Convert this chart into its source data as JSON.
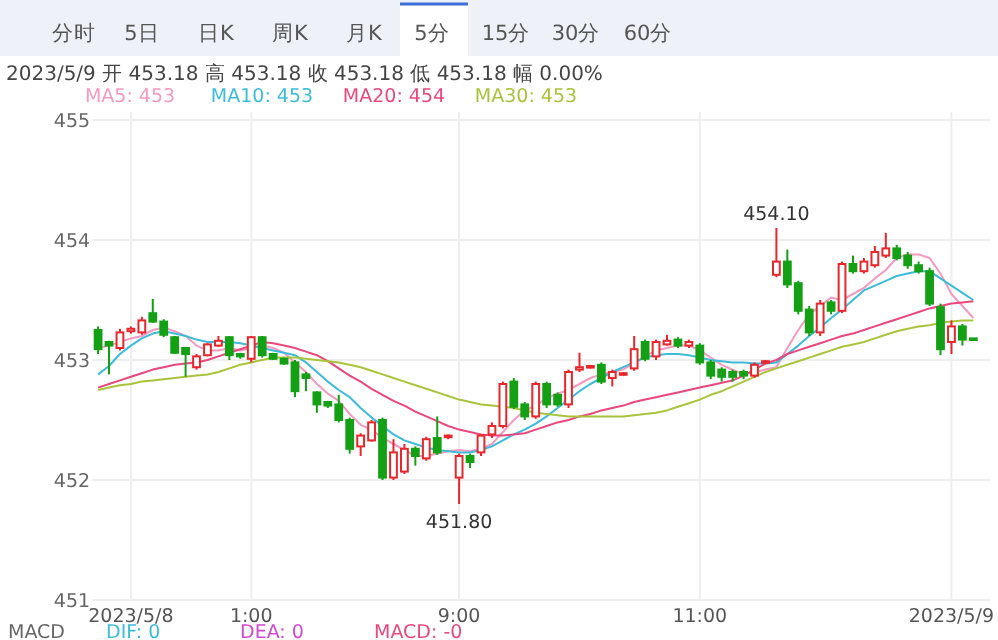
{
  "chart_data": {
    "type": "candlestick",
    "subtitle": "2023/5/9 开 453.18 高 453.18 收 453.18 低 453.18 幅 0.00%",
    "annotations": [
      "分时",
      "5日",
      "日K",
      "周K",
      "月K",
      "5分",
      "15分",
      "30分",
      "60分",
      "MACD",
      "DIF: 0",
      "DEA: 0",
      "MACD: -0",
      {
        "text": "454.10",
        "y": 454.1
      },
      {
        "text": "451.80",
        "y": 451.8
      }
    ],
    "categories": [
      null,
      null,
      null,
      "2023/5/8",
      null,
      null,
      null,
      null,
      null,
      null,
      null,
      null,
      null,
      null,
      "1:00",
      null,
      null,
      null,
      null,
      null,
      null,
      null,
      null,
      null,
      null,
      null,
      null,
      null,
      null,
      null,
      null,
      null,
      null,
      "9:00",
      null,
      null,
      null,
      null,
      null,
      null,
      null,
      null,
      null,
      null,
      null,
      null,
      null,
      null,
      null,
      null,
      null,
      null,
      null,
      null,
      null,
      "11:00",
      null,
      null,
      null,
      null,
      null,
      null,
      null,
      null,
      null,
      null,
      null,
      null,
      null,
      null,
      null,
      null,
      null,
      null,
      null,
      null,
      null,
      null,
      "2023/5/9",
      null,
      null
    ],
    "ohlc": [
      [
        453.25,
        453.28,
        453.05,
        453.09
      ],
      [
        453.15,
        453.16,
        452.88,
        453.12
      ],
      [
        453.1,
        453.26,
        453.08,
        453.23
      ],
      [
        453.24,
        453.28,
        453.22,
        453.26
      ],
      [
        453.23,
        453.36,
        453.21,
        453.33
      ],
      [
        453.39,
        453.51,
        453.31,
        453.32
      ],
      [
        453.32,
        453.34,
        453.19,
        453.21
      ],
      [
        453.19,
        453.2,
        453.05,
        453.06
      ],
      [
        453.1,
        453.11,
        452.86,
        453.05
      ],
      [
        452.94,
        453.05,
        452.92,
        453.03
      ],
      [
        453.04,
        453.14,
        453.03,
        453.13
      ],
      [
        453.12,
        453.2,
        453.11,
        453.16
      ],
      [
        453.19,
        453.2,
        453.0,
        453.04
      ],
      [
        453.05,
        453.06,
        453.01,
        453.03
      ],
      [
        453.01,
        453.2,
        452.98,
        453.19
      ],
      [
        453.19,
        453.2,
        453.02,
        453.04
      ],
      [
        453.05,
        453.06,
        453.0,
        453.01
      ],
      [
        453.01,
        453.02,
        452.96,
        452.97
      ],
      [
        452.98,
        453.0,
        452.69,
        452.74
      ],
      [
        452.88,
        452.9,
        452.74,
        452.85
      ],
      [
        452.73,
        452.74,
        452.56,
        452.63
      ],
      [
        452.65,
        452.66,
        452.6,
        452.62
      ],
      [
        452.63,
        452.71,
        452.48,
        452.5
      ],
      [
        452.5,
        452.52,
        452.22,
        452.26
      ],
      [
        452.28,
        452.39,
        452.2,
        452.37
      ],
      [
        452.33,
        452.5,
        452.32,
        452.48
      ],
      [
        452.5,
        452.52,
        452.0,
        452.02
      ],
      [
        452.02,
        452.34,
        452.0,
        452.23
      ],
      [
        452.07,
        452.3,
        452.05,
        452.26
      ],
      [
        452.26,
        452.28,
        452.12,
        452.2
      ],
      [
        452.18,
        452.36,
        452.16,
        452.34
      ],
      [
        452.35,
        452.53,
        452.21,
        452.23
      ],
      [
        452.36,
        452.38,
        452.34,
        452.37
      ],
      [
        452.02,
        452.22,
        451.8,
        452.2
      ],
      [
        452.2,
        452.22,
        452.1,
        452.15
      ],
      [
        452.23,
        452.38,
        452.2,
        452.37
      ],
      [
        452.38,
        452.48,
        452.35,
        452.45
      ],
      [
        452.45,
        452.82,
        452.43,
        452.8
      ],
      [
        452.82,
        452.85,
        452.59,
        452.61
      ],
      [
        452.63,
        452.65,
        452.5,
        452.53
      ],
      [
        452.53,
        452.82,
        452.51,
        452.8
      ],
      [
        452.8,
        452.82,
        452.6,
        452.63
      ],
      [
        452.71,
        452.73,
        452.61,
        452.63
      ],
      [
        452.63,
        452.92,
        452.6,
        452.9
      ],
      [
        452.92,
        453.06,
        452.9,
        452.94
      ],
      [
        452.94,
        452.96,
        452.93,
        452.95
      ],
      [
        452.96,
        452.98,
        452.8,
        452.82
      ],
      [
        452.85,
        452.92,
        452.78,
        452.9
      ],
      [
        452.88,
        452.9,
        452.87,
        452.89
      ],
      [
        452.93,
        453.2,
        452.91,
        453.09
      ],
      [
        453.15,
        453.17,
        452.99,
        453.01
      ],
      [
        453.03,
        453.17,
        453.0,
        453.15
      ],
      [
        453.13,
        453.21,
        453.12,
        453.16
      ],
      [
        453.17,
        453.19,
        453.1,
        453.12
      ],
      [
        453.12,
        453.17,
        453.1,
        453.15
      ],
      [
        453.12,
        453.14,
        452.96,
        452.98
      ],
      [
        452.98,
        453.0,
        452.84,
        452.87
      ],
      [
        452.92,
        452.94,
        452.82,
        452.86
      ],
      [
        452.9,
        452.92,
        452.82,
        452.86
      ],
      [
        452.9,
        452.92,
        452.84,
        452.87
      ],
      [
        452.87,
        452.98,
        452.85,
        452.96
      ],
      [
        452.98,
        453.0,
        452.97,
        452.99
      ],
      [
        453.71,
        454.1,
        453.69,
        453.82
      ],
      [
        453.82,
        453.92,
        453.6,
        453.63
      ],
      [
        453.64,
        453.66,
        453.38,
        453.41
      ],
      [
        453.42,
        453.45,
        453.2,
        453.23
      ],
      [
        453.23,
        453.5,
        453.2,
        453.47
      ],
      [
        453.48,
        453.5,
        453.38,
        453.41
      ],
      [
        453.41,
        453.82,
        453.39,
        453.8
      ],
      [
        453.8,
        453.87,
        453.72,
        453.74
      ],
      [
        453.74,
        453.85,
        453.72,
        453.82
      ],
      [
        453.79,
        453.95,
        453.77,
        453.9
      ],
      [
        453.87,
        454.06,
        453.85,
        453.93
      ],
      [
        453.93,
        453.96,
        453.83,
        453.85
      ],
      [
        453.87,
        453.9,
        453.76,
        453.79
      ],
      [
        453.79,
        453.82,
        453.72,
        453.74
      ],
      [
        453.74,
        453.77,
        453.45,
        453.47
      ],
      [
        453.44,
        453.47,
        453.04,
        453.09
      ],
      [
        453.15,
        453.33,
        453.05,
        453.28
      ],
      [
        453.28,
        453.3,
        453.12,
        453.17
      ],
      [
        453.18,
        453.18,
        453.18,
        453.18
      ]
    ],
    "series": [
      {
        "name": "MA5: 453",
        "type": "line",
        "color": "#f29ac0",
        "values": [
          453.1,
          453.12,
          453.15,
          453.18,
          453.2,
          453.25,
          453.27,
          453.24,
          453.2,
          453.12,
          453.08,
          453.08,
          453.1,
          453.08,
          453.1,
          453.12,
          453.1,
          453.06,
          452.98,
          452.9,
          452.8,
          452.72,
          452.66,
          452.55,
          452.46,
          452.42,
          452.35,
          452.3,
          452.25,
          452.2,
          452.2,
          452.22,
          452.24,
          452.25,
          452.24,
          452.26,
          452.3,
          452.4,
          452.5,
          452.58,
          452.62,
          452.68,
          452.72,
          452.75,
          452.8,
          452.85,
          452.88,
          452.9,
          452.92,
          452.98,
          453.03,
          453.08,
          453.1,
          453.12,
          453.12,
          453.08,
          453.02,
          452.96,
          452.92,
          452.88,
          452.9,
          452.92,
          452.94,
          453.1,
          453.25,
          453.38,
          453.45,
          453.52,
          453.5,
          453.55,
          453.6,
          453.68,
          453.75,
          453.85,
          453.88,
          453.88,
          453.85,
          453.72,
          453.55,
          453.45,
          453.35
        ]
      },
      {
        "name": "MA10: 453",
        "type": "line",
        "color": "#3cbcd8",
        "values": [
          452.88,
          452.95,
          453.05,
          453.12,
          453.18,
          453.22,
          453.24,
          453.22,
          453.2,
          453.17,
          453.15,
          453.15,
          453.15,
          453.14,
          453.12,
          453.1,
          453.08,
          453.06,
          453.04,
          452.98,
          452.9,
          452.82,
          452.75,
          452.69,
          452.6,
          452.52,
          452.45,
          452.38,
          452.33,
          452.3,
          452.27,
          452.25,
          452.24,
          452.23,
          452.23,
          452.25,
          452.28,
          452.33,
          452.38,
          452.42,
          452.47,
          452.53,
          452.6,
          452.67,
          452.74,
          452.8,
          452.85,
          452.9,
          452.94,
          452.98,
          453.02,
          453.04,
          453.05,
          453.05,
          453.04,
          453.02,
          453.0,
          452.99,
          452.98,
          452.98,
          452.97,
          452.97,
          452.98,
          453.05,
          453.12,
          453.2,
          453.27,
          453.35,
          453.42,
          453.5,
          453.58,
          453.62,
          453.66,
          453.7,
          453.72,
          453.74,
          453.74,
          453.68,
          453.62,
          453.56,
          453.5
        ]
      },
      {
        "name": "MA20: 454",
        "type": "line",
        "color": "#e8487c",
        "values": [
          452.77,
          452.8,
          452.83,
          452.86,
          452.89,
          452.92,
          452.94,
          452.96,
          452.97,
          452.98,
          453.0,
          453.03,
          453.06,
          453.09,
          453.12,
          453.15,
          453.14,
          453.12,
          453.1,
          453.07,
          453.04,
          452.99,
          452.93,
          452.87,
          452.82,
          452.76,
          452.71,
          452.66,
          452.62,
          452.57,
          452.53,
          452.49,
          452.45,
          452.42,
          452.4,
          452.38,
          452.37,
          452.37,
          452.38,
          452.39,
          452.42,
          452.45,
          452.48,
          452.5,
          452.53,
          452.55,
          452.58,
          452.6,
          452.62,
          452.65,
          452.67,
          452.69,
          452.71,
          452.73,
          452.75,
          452.77,
          452.79,
          452.81,
          452.83,
          452.87,
          452.92,
          452.97,
          453.0,
          453.05,
          453.08,
          453.11,
          453.14,
          453.17,
          453.2,
          453.22,
          453.25,
          453.28,
          453.31,
          453.34,
          453.37,
          453.4,
          453.43,
          453.45,
          453.47,
          453.48,
          453.49
        ]
      },
      {
        "name": "MA30: 453",
        "type": "line",
        "color": "#a9c43c",
        "values": [
          452.75,
          452.77,
          452.79,
          452.8,
          452.82,
          452.83,
          452.84,
          452.85,
          452.86,
          452.87,
          452.88,
          452.9,
          452.93,
          452.96,
          452.98,
          453.0,
          453.02,
          453.02,
          453.02,
          453.01,
          453.0,
          452.99,
          452.98,
          452.96,
          452.94,
          452.91,
          452.88,
          452.85,
          452.82,
          452.79,
          452.76,
          452.73,
          452.7,
          452.67,
          452.65,
          452.63,
          452.62,
          452.61,
          452.6,
          452.58,
          452.56,
          452.55,
          452.54,
          452.53,
          452.53,
          452.53,
          452.53,
          452.53,
          452.53,
          452.54,
          452.55,
          452.56,
          452.58,
          452.61,
          452.64,
          452.67,
          452.71,
          452.74,
          452.78,
          452.82,
          452.86,
          452.9,
          452.93,
          452.96,
          452.99,
          453.02,
          453.05,
          453.08,
          453.11,
          453.13,
          453.15,
          453.18,
          453.21,
          453.24,
          453.26,
          453.28,
          453.29,
          453.31,
          453.32,
          453.33,
          453.33
        ]
      }
    ],
    "ylim": [
      451,
      455
    ],
    "yticks": [
      451,
      452,
      453,
      454,
      455
    ],
    "grid": true,
    "legend": "top"
  }
}
